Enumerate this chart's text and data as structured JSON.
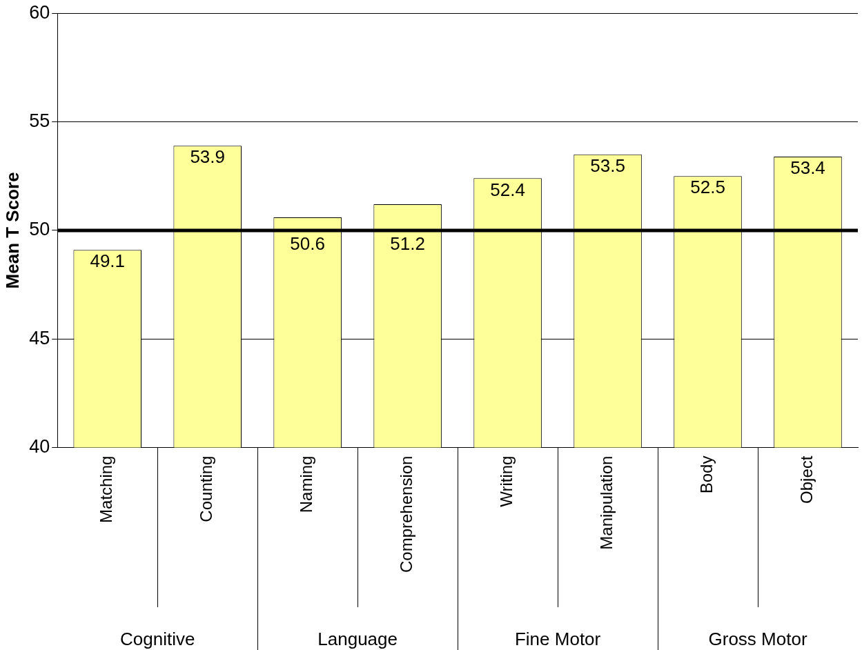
{
  "chart_data": {
    "type": "bar",
    "ylabel": "Mean T Score",
    "categories": [
      "Matching",
      "Counting",
      "Naming",
      "Comprehension",
      "Writing",
      "Manipulation",
      "Body",
      "Object"
    ],
    "values": [
      49.1,
      53.9,
      50.6,
      51.2,
      52.4,
      53.5,
      52.5,
      53.4
    ],
    "color": "#ffff99",
    "ylim": [
      40,
      60
    ],
    "yticks": [
      40,
      45,
      50,
      55,
      60
    ],
    "grid": "y",
    "data_labels": true,
    "ref_lines": [
      {
        "axis": "y",
        "value": 50,
        "color": "#000000"
      }
    ],
    "annotations": [
      "Cognitive",
      "Language",
      "Fine Motor",
      "Gross Motor"
    ]
  }
}
